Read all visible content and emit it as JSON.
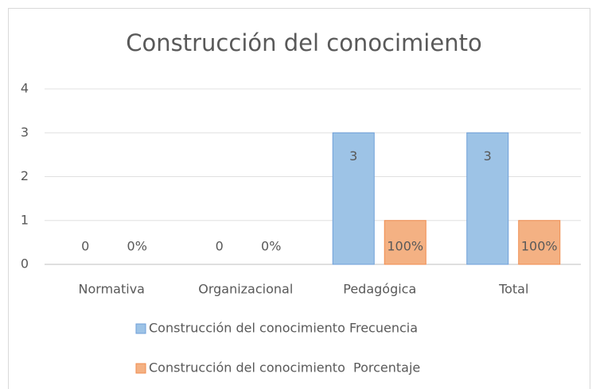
{
  "chart_data": {
    "type": "bar",
    "title": "Construcción del conocimiento",
    "categories": [
      "Normativa",
      "Organizacional",
      "Pedagógica",
      "Total"
    ],
    "series": [
      {
        "name": "Construcción del conocimiento Frecuencia",
        "color": "#9dc3e6",
        "values": [
          0,
          0,
          3,
          3
        ]
      },
      {
        "name": "Construcción del conocimiento  Porcentaje",
        "color": "#f4b183",
        "values": [
          0,
          0,
          1,
          1
        ],
        "value_labels": [
          "0%",
          "0%",
          "100%",
          "100%"
        ]
      }
    ],
    "ylim": [
      0,
      4
    ],
    "yticks": [
      0,
      1,
      2,
      3,
      4
    ],
    "grid": true,
    "legend": "bottom"
  }
}
